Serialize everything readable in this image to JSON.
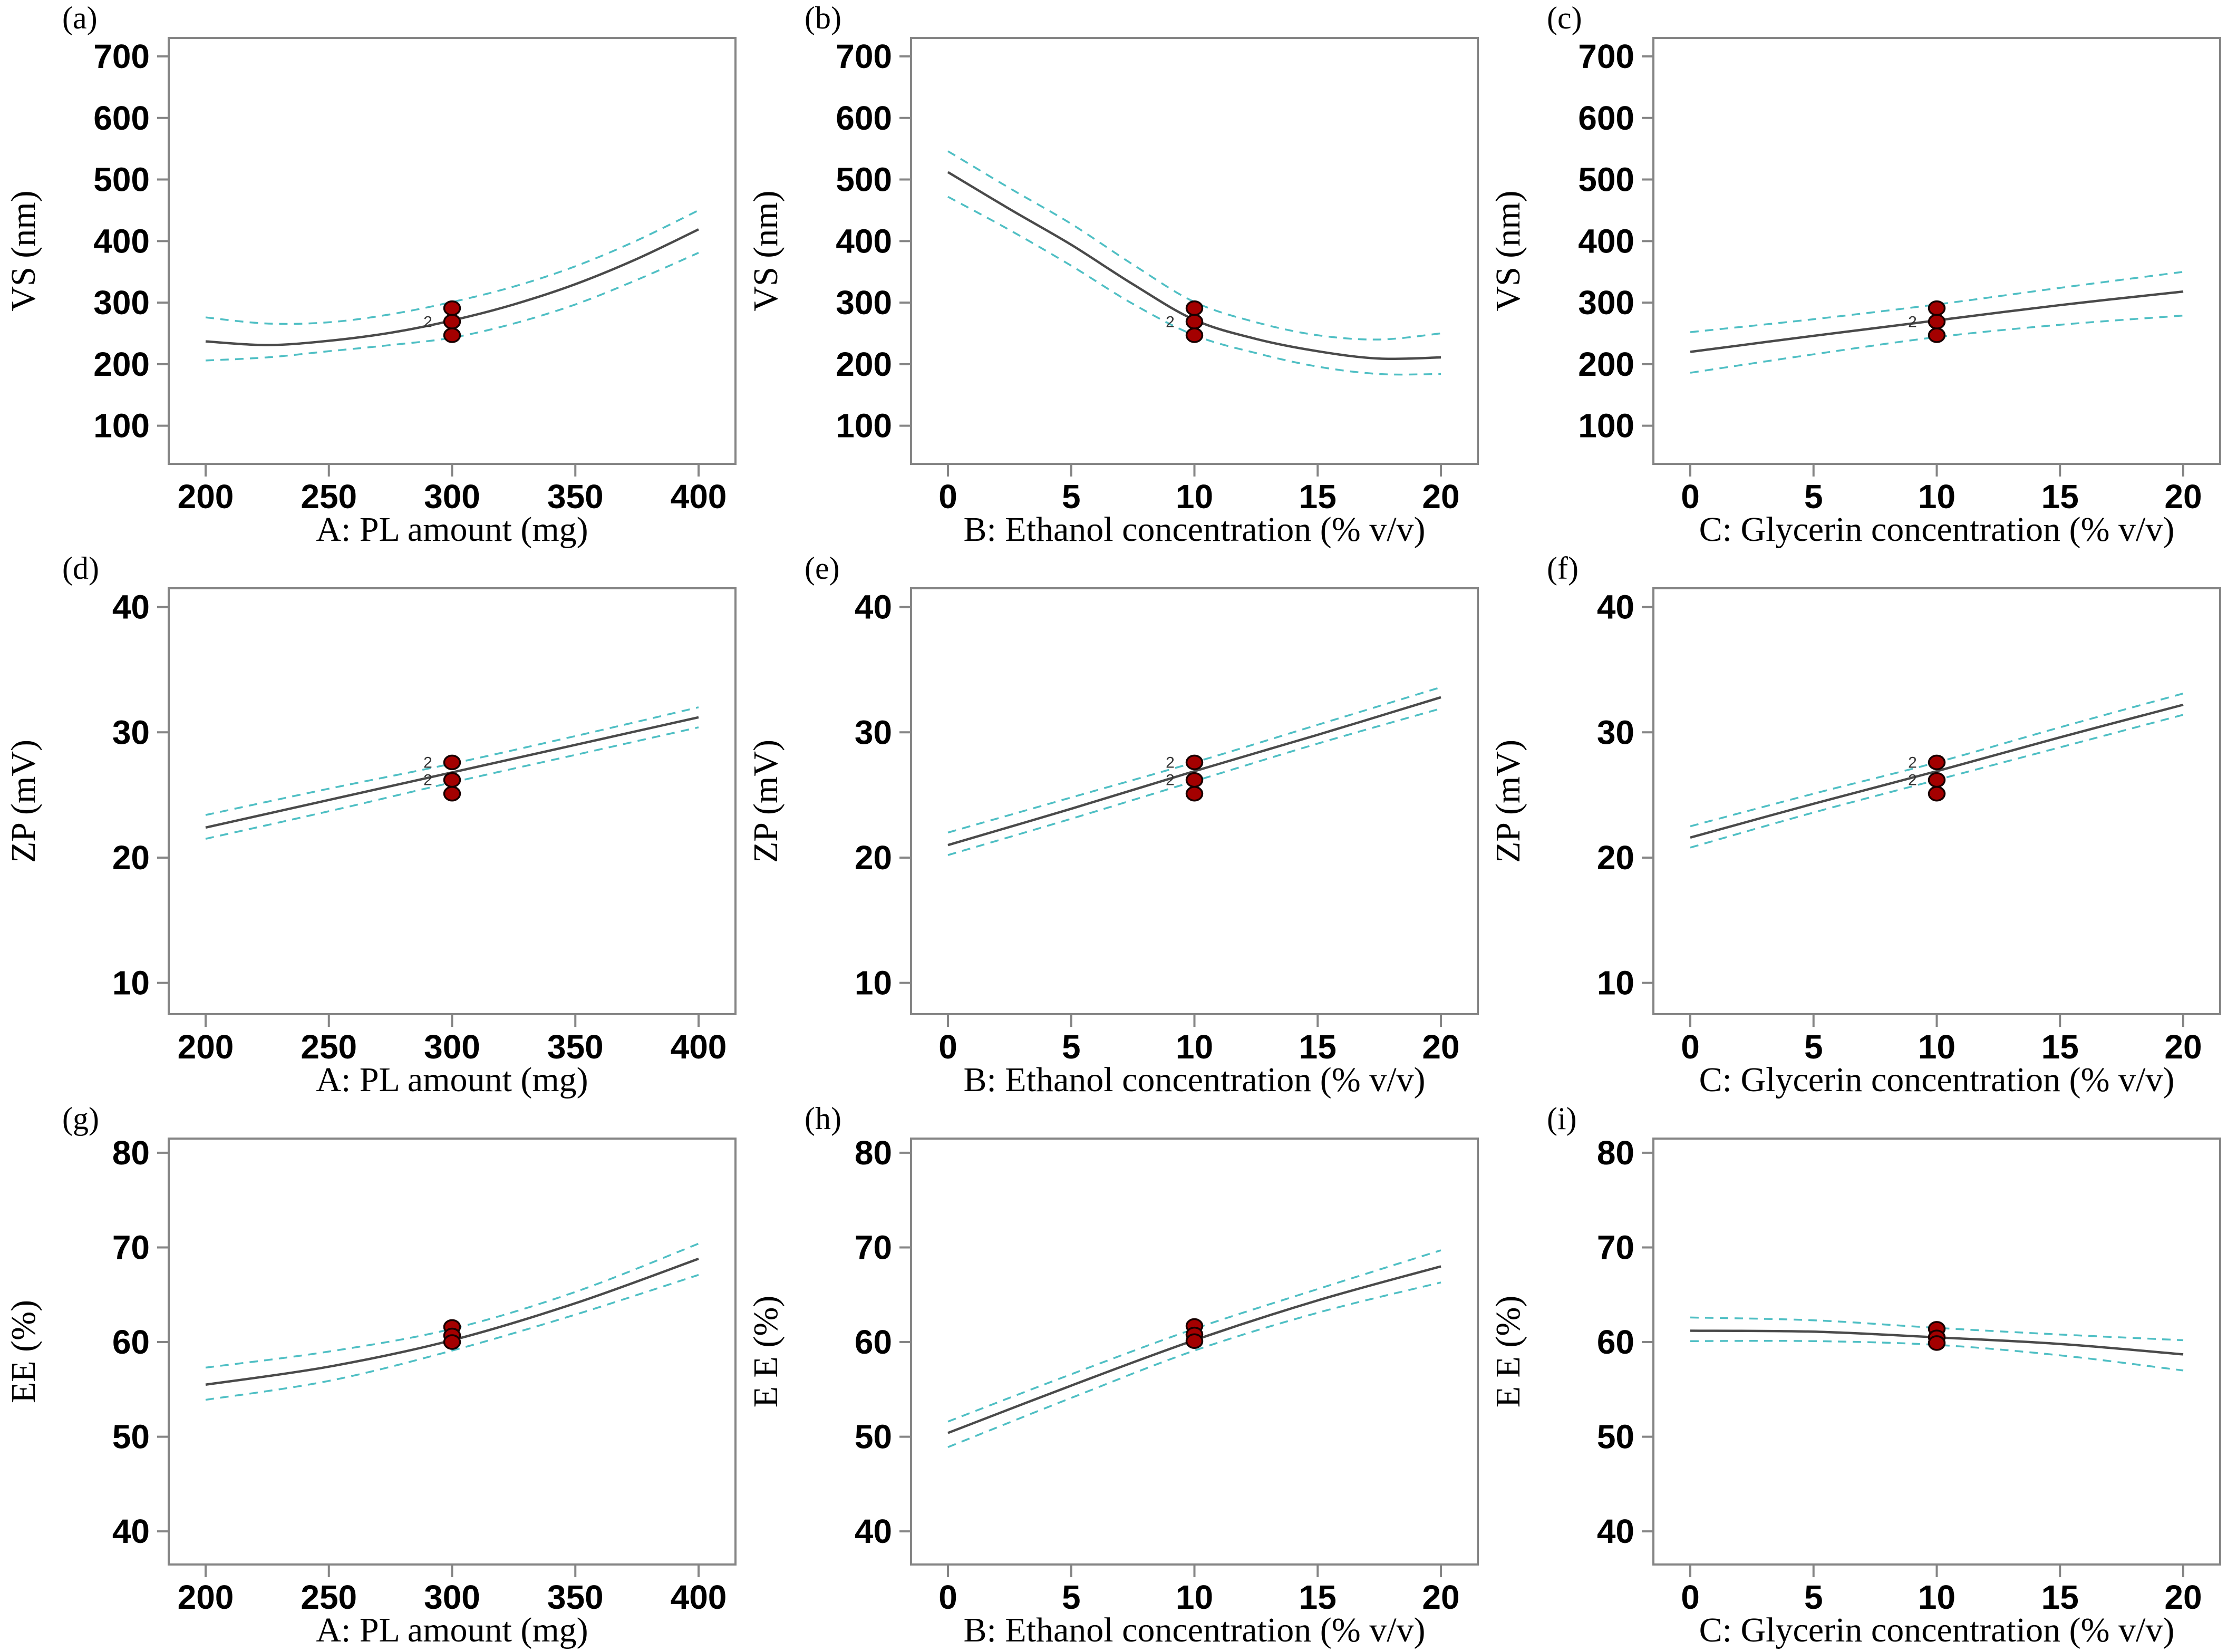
{
  "figure_title": "",
  "styles": {
    "mean_line_color": "#4a4a4a",
    "ci_line_color": "#4fbfc4",
    "point_fill": "#a40000",
    "point_stroke": "#180000",
    "frame_color": "#858585",
    "text_color": "#000000"
  },
  "chart_data": {
    "type": "line",
    "grid": "off",
    "legend": "none",
    "description": "3x3 grid of one-factor effect plots with mean curve, dashed 95% CI bands and replicate design points at the center level",
    "panels": [
      {
        "id": "a",
        "label": "(a)",
        "xlabel": "A: PL amount (mg)",
        "ylabel": "VS (nm)",
        "xlim": [
          200,
          400
        ],
        "ylim": [
          38,
          730
        ],
        "xticks": [
          200,
          250,
          300,
          350,
          400
        ],
        "yticks": [
          100,
          200,
          300,
          400,
          500,
          600,
          700
        ],
        "series": {
          "mean": [
            [
              200,
              237
            ],
            [
              225,
              231
            ],
            [
              250,
              238
            ],
            [
              275,
              251
            ],
            [
              300,
              271
            ],
            [
              325,
              297
            ],
            [
              350,
              330
            ],
            [
              375,
              371
            ],
            [
              400,
              419
            ]
          ],
          "ci_upper": [
            [
              200,
              276
            ],
            [
              225,
              266
            ],
            [
              250,
              268
            ],
            [
              275,
              281
            ],
            [
              300,
              301
            ],
            [
              325,
              326
            ],
            [
              350,
              359
            ],
            [
              375,
              401
            ],
            [
              400,
              450
            ]
          ],
          "ci_lower": [
            [
              200,
              206
            ],
            [
              225,
              211
            ],
            [
              250,
              221
            ],
            [
              275,
              231
            ],
            [
              300,
              243
            ],
            [
              325,
              266
            ],
            [
              350,
              297
            ],
            [
              375,
              337
            ],
            [
              400,
              381
            ]
          ]
        },
        "points": [
          {
            "x": 300,
            "y": 291
          },
          {
            "x": 300,
            "y": 269,
            "count": "2"
          },
          {
            "x": 300,
            "y": 247
          }
        ]
      },
      {
        "id": "b",
        "label": "(b)",
        "xlabel": "B: Ethanol concentration (% v/v)",
        "ylabel": "VS (nm)",
        "xlim": [
          0,
          20
        ],
        "ylim": [
          38,
          730
        ],
        "xticks": [
          0,
          5,
          10,
          15,
          20
        ],
        "yticks": [
          100,
          200,
          300,
          400,
          500,
          600,
          700
        ],
        "series": {
          "mean": [
            [
              0,
              512
            ],
            [
              2.5,
              452
            ],
            [
              5,
              394
            ],
            [
              7.5,
              330
            ],
            [
              10,
              272
            ],
            [
              12.5,
              241
            ],
            [
              15,
              221
            ],
            [
              17.5,
              209
            ],
            [
              20,
              211
            ]
          ],
          "ci_upper": [
            [
              0,
              546
            ],
            [
              2.5,
              486
            ],
            [
              5,
              428
            ],
            [
              7.5,
              362
            ],
            [
              10,
              301
            ],
            [
              12.5,
              268
            ],
            [
              15,
              247
            ],
            [
              17.5,
              240
            ],
            [
              20,
              250
            ]
          ],
          "ci_lower": [
            [
              0,
              472
            ],
            [
              2.5,
              418
            ],
            [
              5,
              360
            ],
            [
              7.5,
              298
            ],
            [
              10,
              247
            ],
            [
              12.5,
              218
            ],
            [
              15,
              196
            ],
            [
              17.5,
              184
            ],
            [
              20,
              184
            ]
          ]
        },
        "points": [
          {
            "x": 10,
            "y": 291
          },
          {
            "x": 10,
            "y": 269,
            "count": "2"
          },
          {
            "x": 10,
            "y": 247
          }
        ]
      },
      {
        "id": "c",
        "label": "(c)",
        "xlabel": "C: Glycerin concentration (% v/v)",
        "ylabel": "VS (nm)",
        "xlim": [
          0,
          20
        ],
        "ylim": [
          38,
          730
        ],
        "xticks": [
          0,
          5,
          10,
          15,
          20
        ],
        "yticks": [
          100,
          200,
          300,
          400,
          500,
          600,
          700
        ],
        "series": {
          "mean": [
            [
              0,
              220
            ],
            [
              5,
              246
            ],
            [
              10,
              271
            ],
            [
              15,
              296
            ],
            [
              20,
              318
            ]
          ],
          "ci_upper": [
            [
              0,
              252
            ],
            [
              5,
              273
            ],
            [
              10,
              297
            ],
            [
              15,
              324
            ],
            [
              20,
              350
            ]
          ],
          "ci_lower": [
            [
              0,
              186
            ],
            [
              5,
              216
            ],
            [
              10,
              244
            ],
            [
              15,
              264
            ],
            [
              20,
              279
            ]
          ]
        },
        "points": [
          {
            "x": 10,
            "y": 291
          },
          {
            "x": 10,
            "y": 269,
            "count": "2"
          },
          {
            "x": 10,
            "y": 247
          }
        ]
      },
      {
        "id": "d",
        "label": "(d)",
        "xlabel": "A: PL amount (mg)",
        "ylabel": "ZP (mV)",
        "xlim": [
          200,
          400
        ],
        "ylim": [
          7.5,
          41.5
        ],
        "xticks": [
          200,
          250,
          300,
          350,
          400
        ],
        "yticks": [
          10,
          20,
          30,
          40
        ],
        "series": {
          "mean": [
            [
              200,
              22.4
            ],
            [
              250,
              24.6
            ],
            [
              300,
              26.8
            ],
            [
              350,
              29.0
            ],
            [
              400,
              31.2
            ]
          ],
          "ci_upper": [
            [
              200,
              23.4
            ],
            [
              250,
              25.5
            ],
            [
              300,
              27.5
            ],
            [
              350,
              29.7
            ],
            [
              400,
              32.0
            ]
          ],
          "ci_lower": [
            [
              200,
              21.5
            ],
            [
              250,
              23.7
            ],
            [
              300,
              26.0
            ],
            [
              350,
              28.2
            ],
            [
              400,
              30.4
            ]
          ]
        },
        "points": [
          {
            "x": 300,
            "y": 27.6,
            "count": "2"
          },
          {
            "x": 300,
            "y": 26.2,
            "count": "2"
          },
          {
            "x": 300,
            "y": 25.1
          }
        ]
      },
      {
        "id": "e",
        "label": "(e)",
        "xlabel": "B: Ethanol concentration (% v/v)",
        "ylabel": "ZP (mV)",
        "xlim": [
          0,
          20
        ],
        "ylim": [
          7.5,
          41.5
        ],
        "xticks": [
          0,
          5,
          10,
          15,
          20
        ],
        "yticks": [
          10,
          20,
          30,
          40
        ],
        "series": {
          "mean": [
            [
              0,
              21.0
            ],
            [
              5,
              23.9
            ],
            [
              10,
              26.9
            ],
            [
              15,
              29.8
            ],
            [
              20,
              32.8
            ]
          ],
          "ci_upper": [
            [
              0,
              22.0
            ],
            [
              5,
              24.8
            ],
            [
              10,
              27.6
            ],
            [
              15,
              30.6
            ],
            [
              20,
              33.6
            ]
          ],
          "ci_lower": [
            [
              0,
              20.2
            ],
            [
              5,
              23.1
            ],
            [
              10,
              26.1
            ],
            [
              15,
              29.1
            ],
            [
              20,
              31.9
            ]
          ]
        },
        "points": [
          {
            "x": 10,
            "y": 27.6,
            "count": "2"
          },
          {
            "x": 10,
            "y": 26.2,
            "count": "2"
          },
          {
            "x": 10,
            "y": 25.1
          }
        ]
      },
      {
        "id": "f",
        "label": "(f)",
        "xlabel": "C: Glycerin concentration (% v/v)",
        "ylabel": "ZP (mV)",
        "xlim": [
          0,
          20
        ],
        "ylim": [
          7.5,
          41.5
        ],
        "xticks": [
          0,
          5,
          10,
          15,
          20
        ],
        "yticks": [
          10,
          20,
          30,
          40
        ],
        "series": {
          "mean": [
            [
              0,
              21.6
            ],
            [
              5,
              24.3
            ],
            [
              10,
              26.9
            ],
            [
              15,
              29.6
            ],
            [
              20,
              32.2
            ]
          ],
          "ci_upper": [
            [
              0,
              22.5
            ],
            [
              5,
              25.1
            ],
            [
              10,
              27.6
            ],
            [
              15,
              30.4
            ],
            [
              20,
              33.1
            ]
          ],
          "ci_lower": [
            [
              0,
              20.8
            ],
            [
              5,
              23.6
            ],
            [
              10,
              26.2
            ],
            [
              15,
              28.8
            ],
            [
              20,
              31.4
            ]
          ]
        },
        "points": [
          {
            "x": 10,
            "y": 27.6,
            "count": "2"
          },
          {
            "x": 10,
            "y": 26.2,
            "count": "2"
          },
          {
            "x": 10,
            "y": 25.1
          }
        ]
      },
      {
        "id": "g",
        "label": "(g)",
        "xlabel": "A: PL amount (mg)",
        "ylabel": "EE (%)",
        "xlim": [
          200,
          400
        ],
        "ylim": [
          36.5,
          81.5
        ],
        "xticks": [
          200,
          250,
          300,
          350,
          400
        ],
        "yticks": [
          40,
          50,
          60,
          70,
          80
        ],
        "series": {
          "mean": [
            [
              200,
              55.5
            ],
            [
              250,
              57.4
            ],
            [
              300,
              60.2
            ],
            [
              350,
              64.1
            ],
            [
              400,
              68.8
            ]
          ],
          "ci_upper": [
            [
              200,
              57.3
            ],
            [
              250,
              59.0
            ],
            [
              300,
              61.4
            ],
            [
              350,
              65.3
            ],
            [
              400,
              70.4
            ]
          ],
          "ci_lower": [
            [
              200,
              53.9
            ],
            [
              250,
              55.9
            ],
            [
              300,
              59.1
            ],
            [
              350,
              62.9
            ],
            [
              400,
              67.1
            ]
          ]
        },
        "points": [
          {
            "x": 300,
            "y": 61.6
          },
          {
            "x": 300,
            "y": 60.7
          },
          {
            "x": 300,
            "y": 60.0
          }
        ]
      },
      {
        "id": "h",
        "label": "(h)",
        "xlabel": "B: Ethanol concentration (% v/v)",
        "ylabel": "E E (%)",
        "xlim": [
          0,
          20
        ],
        "ylim": [
          36.5,
          81.5
        ],
        "xticks": [
          0,
          5,
          10,
          15,
          20
        ],
        "yticks": [
          40,
          50,
          60,
          70,
          80
        ],
        "series": {
          "mean": [
            [
              0,
              50.4
            ],
            [
              5,
              55.4
            ],
            [
              10,
              60.2
            ],
            [
              15,
              64.4
            ],
            [
              20,
              68.0
            ]
          ],
          "ci_upper": [
            [
              0,
              51.6
            ],
            [
              5,
              56.6
            ],
            [
              10,
              61.4
            ],
            [
              15,
              65.6
            ],
            [
              20,
              69.7
            ]
          ],
          "ci_lower": [
            [
              0,
              48.9
            ],
            [
              5,
              54.1
            ],
            [
              10,
              59.1
            ],
            [
              15,
              63.1
            ],
            [
              20,
              66.3
            ]
          ]
        },
        "points": [
          {
            "x": 10,
            "y": 61.7
          },
          {
            "x": 10,
            "y": 60.8
          },
          {
            "x": 10,
            "y": 60.1
          }
        ]
      },
      {
        "id": "i",
        "label": "(i)",
        "xlabel": "C: Glycerin concentration (% v/v)",
        "ylabel": "E E (%)",
        "xlim": [
          0,
          20
        ],
        "ylim": [
          36.5,
          81.5
        ],
        "xticks": [
          0,
          5,
          10,
          15,
          20
        ],
        "yticks": [
          40,
          50,
          60,
          70,
          80
        ],
        "series": {
          "mean": [
            [
              0,
              61.2
            ],
            [
              5,
              61.1
            ],
            [
              10,
              60.5
            ],
            [
              15,
              59.8
            ],
            [
              20,
              58.7
            ]
          ],
          "ci_upper": [
            [
              0,
              62.6
            ],
            [
              5,
              62.3
            ],
            [
              10,
              61.5
            ],
            [
              15,
              60.8
            ],
            [
              20,
              60.2
            ]
          ],
          "ci_lower": [
            [
              0,
              60.1
            ],
            [
              5,
              60.1
            ],
            [
              10,
              59.7
            ],
            [
              15,
              58.6
            ],
            [
              20,
              57.0
            ]
          ]
        },
        "points": [
          {
            "x": 10,
            "y": 61.4
          },
          {
            "x": 10,
            "y": 60.5
          },
          {
            "x": 10,
            "y": 59.9
          }
        ]
      }
    ]
  }
}
